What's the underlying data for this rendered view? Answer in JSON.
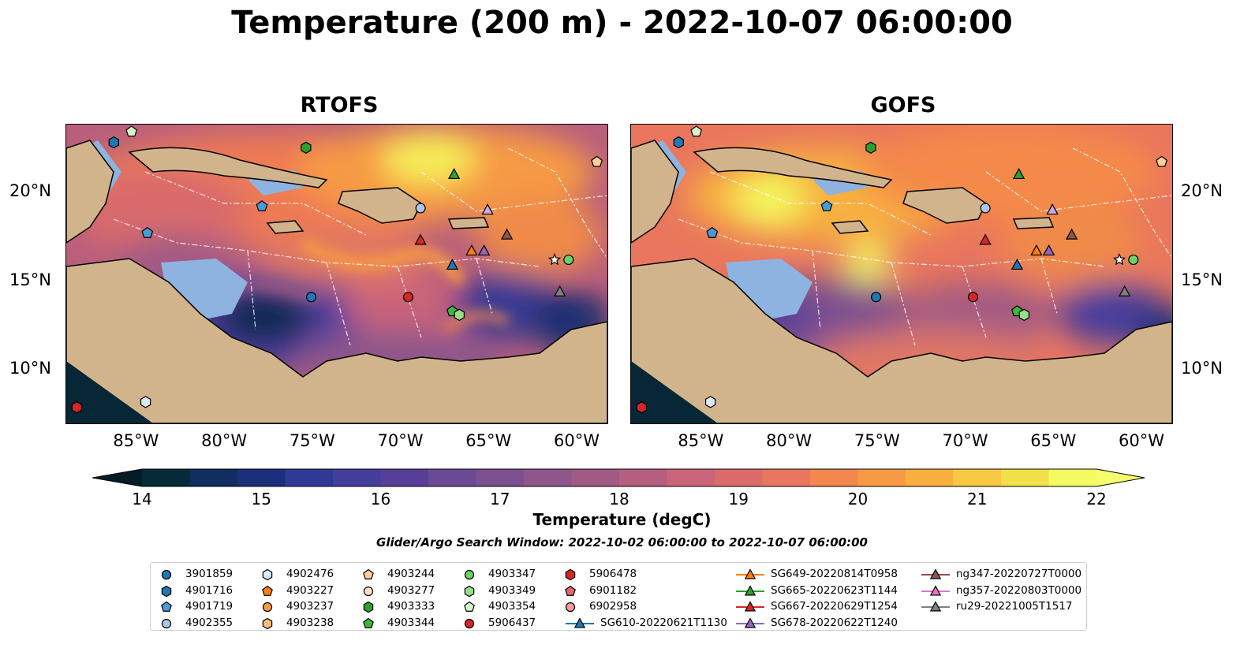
{
  "title": "Temperature (200 m) - 2022-10-07 06:00:00",
  "panels": [
    {
      "id": "rtofs",
      "title": "RTOFS"
    },
    {
      "id": "gofs",
      "title": "GOFS"
    }
  ],
  "map": {
    "lon_range": [
      -89,
      -58.3
    ],
    "lat_range": [
      7,
      23.8
    ],
    "lon_ticks": [
      {
        "value": -85,
        "label": "85°W"
      },
      {
        "value": -80,
        "label": "80°W"
      },
      {
        "value": -75,
        "label": "75°W"
      },
      {
        "value": -70,
        "label": "70°W"
      },
      {
        "value": -65,
        "label": "65°W"
      },
      {
        "value": -60,
        "label": "60°W"
      }
    ],
    "lat_ticks": [
      {
        "value": 20,
        "label": "20°N"
      },
      {
        "value": 15,
        "label": "15°N"
      },
      {
        "value": 10,
        "label": "10°N"
      }
    ],
    "colors": {
      "land": "#d2b48c",
      "shelf": "#8fb3e0",
      "coastline": "#000000",
      "eez": "#ffffff"
    }
  },
  "colorbar": {
    "label": "Temperature (degC)",
    "min": 14,
    "max": 22,
    "step": 0.5,
    "ticks": [
      "14",
      "15",
      "16",
      "17",
      "18",
      "19",
      "20",
      "21",
      "22"
    ],
    "colors": [
      "#062a3a",
      "#0f2d5e",
      "#1d2f7c",
      "#2f3a96",
      "#443e9d",
      "#573f98",
      "#6a4b93",
      "#7c508f",
      "#8e568a",
      "#a05a84",
      "#b45f7f",
      "#c9647a",
      "#db6c6b",
      "#e9765d",
      "#f4874d",
      "#f89a43",
      "#f9b03f",
      "#f8c743",
      "#f2e048",
      "#f3fb60"
    ],
    "under_color": "#031c26",
    "over_color": "#f4ff6e"
  },
  "search_window": "Glider/Argo Search Window: 2022-10-02 06:00:00 to 2022-10-07 06:00:00",
  "legend": {
    "columns": [
      [
        {
          "label": "3901859",
          "marker": "circle",
          "color": "#1f77b4"
        },
        {
          "label": "4901716",
          "marker": "hexagon",
          "color": "#1f77b4"
        },
        {
          "label": "4901719",
          "marker": "pentagon",
          "color": "#4a9ad6"
        },
        {
          "label": "4902355",
          "marker": "circle",
          "color": "#aec7e8"
        }
      ],
      [
        {
          "label": "4902476",
          "marker": "hexagon",
          "color": "#dbe8f7"
        },
        {
          "label": "4903227",
          "marker": "pentagon",
          "color": "#ff7f0e"
        },
        {
          "label": "4903237",
          "marker": "circle",
          "color": "#ff9a3c"
        },
        {
          "label": "4903238",
          "marker": "hexagon",
          "color": "#ffbb78"
        }
      ],
      [
        {
          "label": "4903244",
          "marker": "pentagon",
          "color": "#ffcf9a"
        },
        {
          "label": "4903277",
          "marker": "circle",
          "color": "#ffe0bf"
        },
        {
          "label": "4903333",
          "marker": "hexagon",
          "color": "#2ca02c"
        },
        {
          "label": "4903344",
          "marker": "pentagon",
          "color": "#3cb83c"
        }
      ],
      [
        {
          "label": "4903347",
          "marker": "circle",
          "color": "#6cd06c"
        },
        {
          "label": "4903349",
          "marker": "hexagon",
          "color": "#98df8a"
        },
        {
          "label": "4903354",
          "marker": "pentagon",
          "color": "#d5f5cc"
        },
        {
          "label": "5906437",
          "marker": "circle",
          "color": "#d62728"
        }
      ],
      [
        {
          "label": "5906478",
          "marker": "hexagon",
          "color": "#d62728"
        },
        {
          "label": "6901182",
          "marker": "pentagon",
          "color": "#e8636d"
        },
        {
          "label": "6902958",
          "marker": "circle",
          "color": "#ff9896"
        },
        {
          "label": "SG610-20220621T1130",
          "marker": "triangle",
          "color": "#1f77b4",
          "line": true
        }
      ],
      [
        {
          "label": "SG649-20220814T0958",
          "marker": "triangle",
          "color": "#ff7f0e",
          "line": true
        },
        {
          "label": "SG665-20220623T1144",
          "marker": "triangle",
          "color": "#2ca02c",
          "line": true
        },
        {
          "label": "SG667-20220629T1254",
          "marker": "triangle",
          "color": "#d62728",
          "line": true
        },
        {
          "label": "SG678-20220622T1240",
          "marker": "triangle",
          "color": "#9467bd",
          "line": true
        }
      ],
      [
        {
          "label": "ng347-20220727T0000",
          "marker": "triangle",
          "color": "#8c564b",
          "line": true
        },
        {
          "label": "ng357-20220803T0000",
          "marker": "triangle",
          "color": "#e377c2",
          "line": true
        },
        {
          "label": "ru29-20221005T1517",
          "marker": "triangle",
          "color": "#7f7f7f",
          "line": true
        }
      ]
    ]
  },
  "observations": [
    {
      "id": "3901859",
      "marker": "circle",
      "color": "#1f77b4",
      "lon": -75.1,
      "lat": 14.1
    },
    {
      "id": "4901716",
      "marker": "hexagon",
      "color": "#1f77b4",
      "lon": -86.3,
      "lat": 22.8
    },
    {
      "id": "4901719",
      "marker": "pentagon",
      "color": "#4a9ad6",
      "lon": -77.9,
      "lat": 19.2
    },
    {
      "id": "4901719b",
      "marker": "pentagon",
      "color": "#4a9ad6",
      "lon": -84.4,
      "lat": 17.7
    },
    {
      "id": "4902355",
      "marker": "circle",
      "color": "#aec7e8",
      "lon": -68.9,
      "lat": 19.1
    },
    {
      "id": "4902476",
      "marker": "hexagon",
      "color": "#dbe8f7",
      "lon": -84.5,
      "lat": 8.2
    },
    {
      "id": "4903244",
      "marker": "pentagon",
      "color": "#ffcf9a",
      "lon": -58.9,
      "lat": 21.7
    },
    {
      "id": "4903333",
      "marker": "hexagon",
      "color": "#2ca02c",
      "lon": -75.4,
      "lat": 22.5
    },
    {
      "id": "4903344",
      "marker": "pentagon",
      "color": "#3cb83c",
      "lon": -67.1,
      "lat": 13.3
    },
    {
      "id": "4903347",
      "marker": "circle",
      "color": "#6cd06c",
      "lon": -60.5,
      "lat": 16.2
    },
    {
      "id": "4903349",
      "marker": "hexagon",
      "color": "#98df8a",
      "lon": -66.7,
      "lat": 13.1
    },
    {
      "id": "4903354",
      "marker": "pentagon",
      "color": "#d5f5cc",
      "lon": -85.3,
      "lat": 23.4
    },
    {
      "id": "5906437",
      "marker": "circle",
      "color": "#d62728",
      "lon": -69.6,
      "lat": 14.1
    },
    {
      "id": "5906478",
      "marker": "hexagon",
      "color": "#d62728",
      "lon": -88.4,
      "lat": 7.9
    },
    {
      "id": "SG610-20220621T1130",
      "marker": "triangle",
      "color": "#1f77b4",
      "lon": -67.1,
      "lat": 15.9
    },
    {
      "id": "SG649-20220814T0958",
      "marker": "triangle",
      "color": "#ff7f0e",
      "lon": -66.0,
      "lat": 16.7
    },
    {
      "id": "SG665-20220623T1144",
      "marker": "triangle",
      "color": "#2ca02c",
      "lon": -67.0,
      "lat": 21.0
    },
    {
      "id": "SG667-20220629T1254",
      "marker": "triangle",
      "color": "#d62728",
      "lon": -68.9,
      "lat": 17.3
    },
    {
      "id": "SG678-20220622T1240",
      "marker": "triangle",
      "color": "#9467bd",
      "lon": -65.3,
      "lat": 16.7
    },
    {
      "id": "SG678b",
      "marker": "triangle",
      "color": "#c5a8e8",
      "lon": -65.1,
      "lat": 19.0
    },
    {
      "id": "ng347-20220727T0000",
      "marker": "triangle",
      "color": "#8c564b",
      "lon": -64.0,
      "lat": 17.6
    },
    {
      "id": "ru29-20221005T1517",
      "marker": "triangle",
      "color": "#7f7f7f",
      "lon": -61.0,
      "lat": 14.4
    },
    {
      "id": "star",
      "marker": "star",
      "color": "#ffffff",
      "lon": -61.3,
      "lat": 16.2
    }
  ]
}
